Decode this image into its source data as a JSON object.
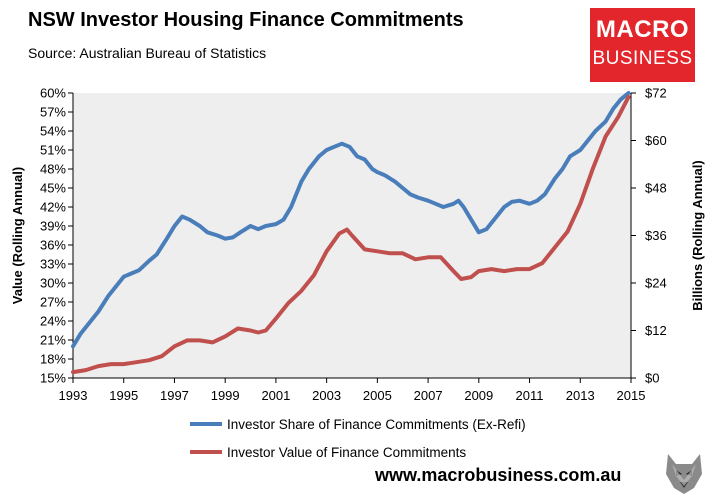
{
  "header": {
    "title": "NSW Investor Housing Finance Commitments",
    "subtitle": "Source: Australian Bureau of Statistics"
  },
  "logo": {
    "line1": "MACRO",
    "line2": "BUSINESS"
  },
  "footer": {
    "url": "www.macrobusiness.com.au"
  },
  "colors": {
    "share": "#4a7ebb",
    "value": "#c0504d",
    "brand": "#e3262b",
    "plot_bg": "#eeeeee"
  },
  "chart_data": {
    "type": "line",
    "ylabel_left": "Value (Rolling Annual)",
    "ylabel_right": "Billions (Rolling Annual)",
    "xlim": [
      1993,
      2015
    ],
    "ylim_left": [
      0.15,
      0.6
    ],
    "ylim_right": [
      0,
      72
    ],
    "x_ticks": [
      1993,
      1995,
      1997,
      1999,
      2001,
      2003,
      2005,
      2007,
      2009,
      2011,
      2013,
      2015
    ],
    "x_tick_labels": [
      "1993",
      "1995",
      "1997",
      "1999",
      "2001",
      "2003",
      "2005",
      "2007",
      "2009",
      "2011",
      "2013",
      "2015"
    ],
    "y_left_ticks": [
      0.15,
      0.18,
      0.21,
      0.24,
      0.27,
      0.3,
      0.33,
      0.36,
      0.39,
      0.42,
      0.45,
      0.48,
      0.51,
      0.54,
      0.57,
      0.6
    ],
    "y_left_tick_labels": [
      "15%",
      "18%",
      "21%",
      "24%",
      "27%",
      "30%",
      "33%",
      "36%",
      "39%",
      "42%",
      "45%",
      "48%",
      "51%",
      "54%",
      "57%",
      "60%"
    ],
    "y_right_ticks": [
      0,
      12,
      24,
      36,
      48,
      60,
      72
    ],
    "y_right_tick_labels": [
      "$0",
      "$12",
      "$24",
      "$36",
      "$48",
      "$60",
      "$72"
    ],
    "legend_position": "bottom",
    "grid": false,
    "series": [
      {
        "name": "Investor Share of Finance Commitments (Ex-Refi)",
        "axis": "left",
        "color": "#4a7ebb",
        "x": [
          1993.0,
          1993.3,
          1993.7,
          1994.0,
          1994.4,
          1994.8,
          1995.0,
          1995.3,
          1995.6,
          1996.0,
          1996.3,
          1996.7,
          1997.0,
          1997.3,
          1997.6,
          1998.0,
          1998.3,
          1998.7,
          1999.0,
          1999.3,
          1999.6,
          2000.0,
          2000.3,
          2000.6,
          2001.0,
          2001.3,
          2001.6,
          2002.0,
          2002.3,
          2002.7,
          2003.0,
          2003.3,
          2003.6,
          2003.9,
          2004.2,
          2004.5,
          2004.8,
          2005.0,
          2005.3,
          2005.7,
          2006.0,
          2006.3,
          2006.6,
          2007.0,
          2007.3,
          2007.6,
          2008.0,
          2008.2,
          2008.4,
          2008.7,
          2009.0,
          2009.3,
          2009.6,
          2010.0,
          2010.3,
          2010.6,
          2011.0,
          2011.3,
          2011.6,
          2012.0,
          2012.3,
          2012.6,
          2013.0,
          2013.3,
          2013.6,
          2014.0,
          2014.3,
          2014.6,
          2014.9
        ],
        "y": [
          0.2,
          0.22,
          0.24,
          0.255,
          0.28,
          0.3,
          0.31,
          0.315,
          0.32,
          0.335,
          0.345,
          0.37,
          0.39,
          0.405,
          0.4,
          0.39,
          0.38,
          0.375,
          0.37,
          0.372,
          0.38,
          0.39,
          0.385,
          0.39,
          0.393,
          0.4,
          0.42,
          0.46,
          0.48,
          0.5,
          0.51,
          0.515,
          0.52,
          0.515,
          0.5,
          0.495,
          0.48,
          0.475,
          0.47,
          0.46,
          0.45,
          0.44,
          0.435,
          0.43,
          0.425,
          0.42,
          0.425,
          0.43,
          0.42,
          0.4,
          0.38,
          0.385,
          0.4,
          0.42,
          0.428,
          0.43,
          0.425,
          0.43,
          0.44,
          0.465,
          0.48,
          0.5,
          0.51,
          0.525,
          0.54,
          0.555,
          0.575,
          0.59,
          0.6
        ]
      },
      {
        "name": "Investor Value of Finance Commitments",
        "axis": "right",
        "color": "#c0504d",
        "x": [
          1993.0,
          1993.5,
          1994.0,
          1994.5,
          1995.0,
          1995.5,
          1996.0,
          1996.5,
          1997.0,
          1997.5,
          1998.0,
          1998.5,
          1999.0,
          1999.5,
          2000.0,
          2000.3,
          2000.6,
          2001.0,
          2001.5,
          2002.0,
          2002.5,
          2003.0,
          2003.5,
          2003.8,
          2004.0,
          2004.5,
          2005.0,
          2005.5,
          2006.0,
          2006.5,
          2007.0,
          2007.5,
          2008.0,
          2008.3,
          2008.7,
          2009.0,
          2009.5,
          2010.0,
          2010.5,
          2011.0,
          2011.5,
          2012.0,
          2012.5,
          2013.0,
          2013.5,
          2014.0,
          2014.5,
          2014.9
        ],
        "y": [
          1.5,
          2.0,
          3.0,
          3.5,
          3.5,
          4.0,
          4.5,
          5.5,
          8.0,
          9.5,
          9.5,
          9.0,
          10.5,
          12.5,
          12.0,
          11.5,
          12.0,
          15.0,
          19.0,
          22.0,
          26.0,
          32.0,
          36.5,
          37.5,
          36.0,
          32.5,
          32.0,
          31.5,
          31.5,
          30.0,
          30.5,
          30.5,
          27.0,
          25.0,
          25.5,
          27.0,
          27.5,
          27.0,
          27.5,
          27.5,
          29.0,
          33.0,
          37.0,
          44.0,
          53.0,
          61.0,
          66.0,
          71.0
        ]
      }
    ]
  }
}
